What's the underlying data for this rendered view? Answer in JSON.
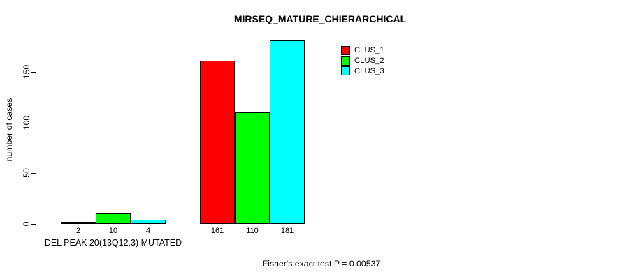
{
  "chart_data": {
    "type": "bar",
    "title": "MIRSEQ_MATURE_CHIERARCHICAL",
    "ylabel": "number of cases",
    "xlabel": "",
    "yticks": [
      0,
      50,
      100,
      150
    ],
    "ylim": [
      0,
      185
    ],
    "grid": false,
    "legend_position": "top-right",
    "categories": [
      "DEL PEAK 20(13Q12.3) MUTATED",
      ""
    ],
    "series": [
      {
        "name": "CLUS_1",
        "color": "#ff0000",
        "values": [
          2,
          161
        ]
      },
      {
        "name": "CLUS_2",
        "color": "#00ff00",
        "values": [
          10,
          110
        ]
      },
      {
        "name": "CLUS_3",
        "color": "#00ffff",
        "values": [
          4,
          181
        ]
      }
    ],
    "bar_value_labels": [
      [
        "2",
        "10",
        "4"
      ],
      [
        "161",
        "110",
        "181"
      ]
    ],
    "footnote": "Fisher's exact test P = 0.00537"
  }
}
